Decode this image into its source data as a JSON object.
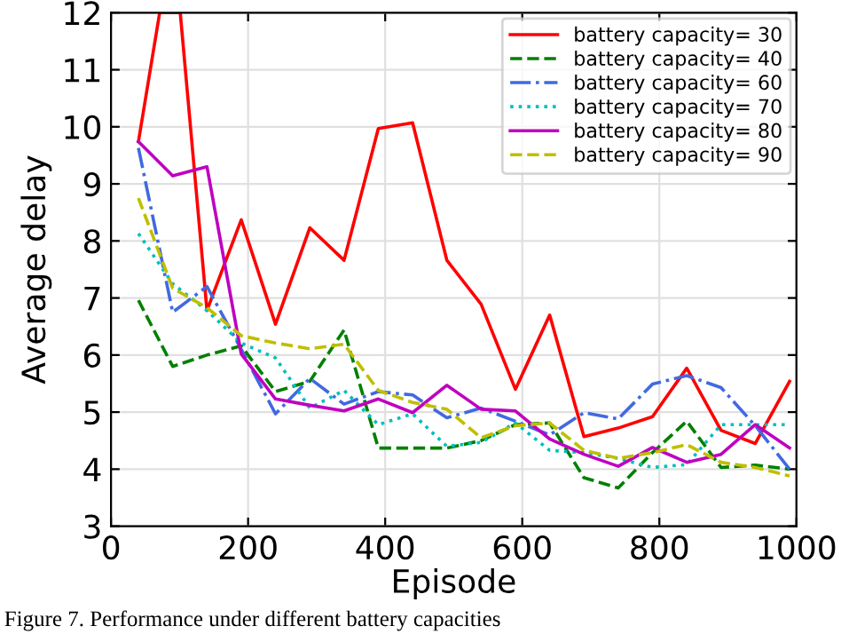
{
  "chart_data": {
    "type": "line",
    "xlabel": "Episode",
    "ylabel": "Average delay",
    "x": [
      40,
      90,
      140,
      190,
      240,
      290,
      340,
      390,
      440,
      490,
      540,
      590,
      640,
      690,
      740,
      790,
      840,
      890,
      940,
      990
    ],
    "xlim": [
      0,
      1000
    ],
    "xticks": [
      0,
      200,
      400,
      600,
      800,
      1000
    ],
    "ylim": [
      3,
      12
    ],
    "yticks": [
      3,
      4,
      5,
      6,
      7,
      8,
      9,
      10,
      11,
      12
    ],
    "grid": true,
    "legend": "top right",
    "marker": "none",
    "annotations": [
      "Figure 7. Performance under different battery capacities"
    ],
    "series": [
      {
        "name": "battery capacity= 30",
        "color": "#ff0000",
        "line_style": "solid",
        "x": [
          40,
          71,
          101,
          140,
          190,
          240,
          290,
          340,
          390,
          440,
          490,
          540,
          590,
          640,
          690,
          740,
          790,
          840,
          890,
          940,
          990
        ],
        "values": [
          9.74,
          12,
          12,
          6.78,
          8.37,
          6.54,
          8.23,
          7.66,
          9.97,
          10.07,
          7.66,
          6.89,
          5.4,
          6.7,
          4.57,
          4.72,
          4.92,
          5.77,
          4.68,
          4.45,
          5.54
        ]
      },
      {
        "name": "battery capacity= 40",
        "color": "#008000",
        "line_style": "dashed",
        "values": [
          6.96,
          5.8,
          6.0,
          6.16,
          5.36,
          5.54,
          6.44,
          4.37,
          4.37,
          4.37,
          4.5,
          4.78,
          4.81,
          3.85,
          3.67,
          4.29,
          4.84,
          4.03,
          4.07,
          4.0
        ]
      },
      {
        "name": "battery capacity= 60",
        "color": "#4169e1",
        "line_style": "dashdot",
        "values": [
          9.63,
          6.75,
          7.2,
          6.1,
          4.97,
          5.59,
          5.14,
          5.36,
          5.3,
          4.9,
          5.07,
          4.84,
          4.6,
          4.99,
          4.88,
          5.49,
          5.64,
          5.43,
          4.76,
          4.0
        ]
      },
      {
        "name": "battery capacity= 70",
        "color": "#00bfbf",
        "line_style": "dotted",
        "values": [
          8.13,
          7.25,
          6.78,
          6.21,
          5.95,
          5.07,
          5.38,
          4.78,
          4.97,
          4.4,
          4.47,
          4.81,
          4.33,
          4.29,
          4.19,
          4.03,
          4.08,
          4.78,
          4.78,
          4.78
        ]
      },
      {
        "name": "battery capacity= 80",
        "color": "#bf00bf",
        "line_style": "solid",
        "values": [
          9.74,
          9.14,
          9.3,
          6.02,
          5.23,
          5.12,
          5.02,
          5.23,
          4.99,
          5.47,
          5.05,
          5.02,
          4.53,
          4.26,
          4.05,
          4.38,
          4.12,
          4.26,
          4.78,
          4.37
        ]
      },
      {
        "name": "battery capacity= 90",
        "color": "#bfbf00",
        "line_style": "dashed",
        "values": [
          8.75,
          7.17,
          6.83,
          6.34,
          6.21,
          6.11,
          6.19,
          5.38,
          5.17,
          5.05,
          4.55,
          4.76,
          4.81,
          4.33,
          4.19,
          4.29,
          4.43,
          4.12,
          4.03,
          3.88
        ]
      }
    ]
  }
}
